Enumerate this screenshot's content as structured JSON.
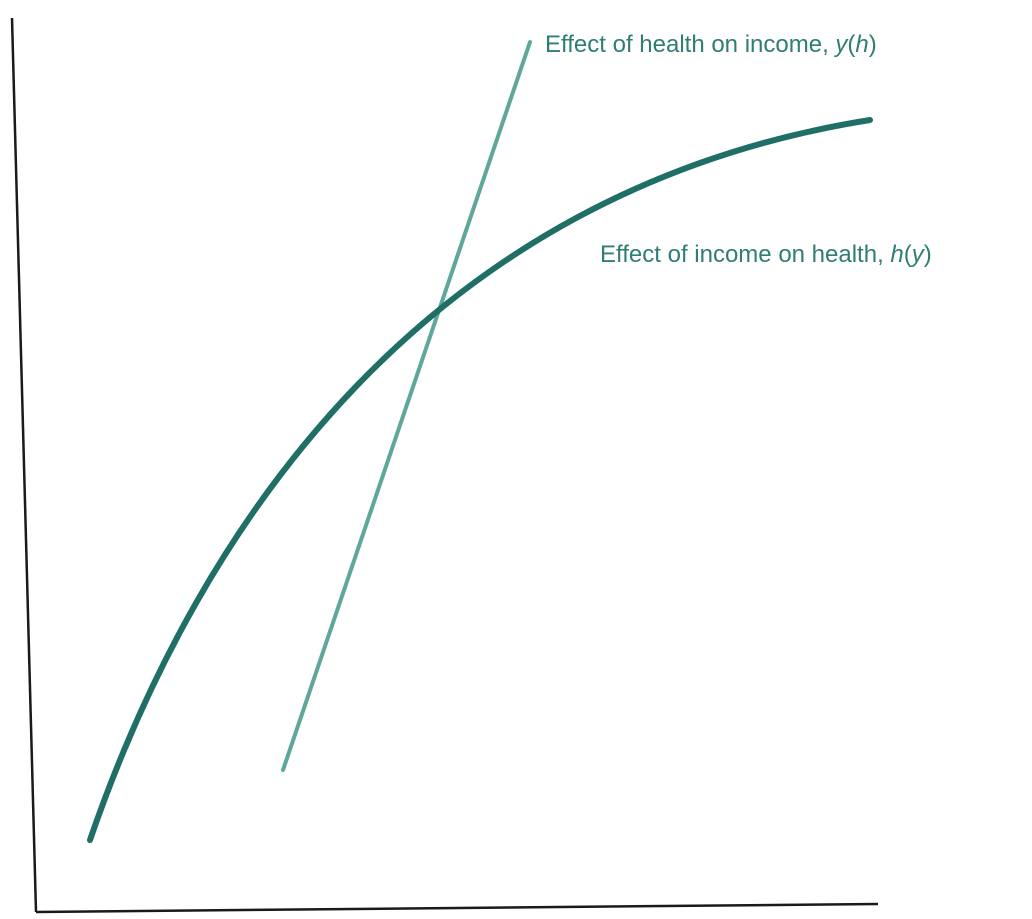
{
  "colors": {
    "axis": "#1a1a1a",
    "health_curve": "#1f6f67",
    "income_line": "#5fa79b",
    "label_text": "#2f7d74"
  },
  "labels": {
    "income_line": {
      "prefix": "Effect of health on income, ",
      "fn": "y",
      "open": "(",
      "arg": "h",
      "close": ")"
    },
    "health_curve": {
      "prefix": "Effect of income on health, ",
      "fn": "h",
      "open": "(",
      "arg": "y",
      "close": ")"
    }
  }
}
